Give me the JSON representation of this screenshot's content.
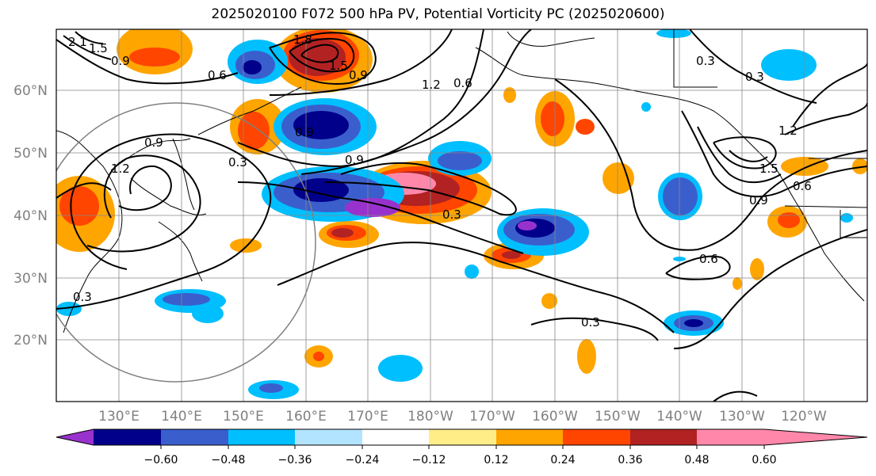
{
  "title": "2025020100 F072 500 hPa PV, Potential Vorticity PC (2025020600)",
  "lat_labels": [
    "60°N",
    "50°N",
    "40°N",
    "30°N",
    "20°N"
  ],
  "lon_labels": [
    "130°E",
    "140°E",
    "150°E",
    "160°E",
    "170°E",
    "180°W",
    "170°W",
    "160°W",
    "150°W",
    "140°W",
    "130°W",
    "120°W"
  ],
  "contour_labels": [
    "0.6",
    "0.9",
    "1.2",
    "0.6",
    "0.9",
    "1.2",
    "0.9",
    "0.3",
    "0.9",
    "0.3",
    "0.3",
    "0.3",
    "0.3",
    "1.2",
    "1.5",
    "0.9",
    "0.6",
    "0.6",
    "0.3",
    "1.5",
    "1.8",
    "2.1",
    "1.5",
    "0.9"
  ],
  "colorbar": {
    "ticks": [
      "−0.60",
      "−0.48",
      "−0.36",
      "−0.24",
      "−0.12",
      "0.12",
      "0.24",
      "0.36",
      "0.48",
      "0.60"
    ],
    "colors": [
      "#9932cc",
      "#00008b",
      "#3a5fcd",
      "#00bfff",
      "#b2e3ff",
      "#ffffff",
      "#ffee88",
      "#ffa500",
      "#ff4500",
      "#b22222",
      "#ff88aa"
    ]
  }
}
